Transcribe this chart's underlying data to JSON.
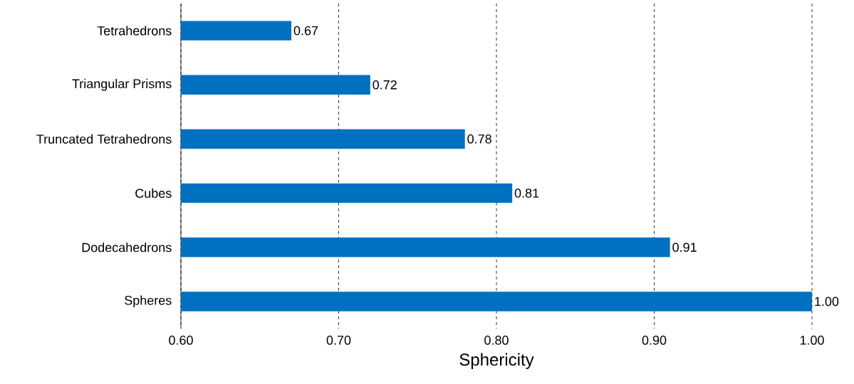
{
  "chart_data": {
    "type": "bar",
    "orientation": "horizontal",
    "xlabel": "Sphericity",
    "categories": [
      "Tetrahedrons",
      "Triangular Prisms",
      "Truncated Tetrahedrons",
      "Cubes",
      "Dodecahedrons",
      "Spheres"
    ],
    "values": [
      0.67,
      0.72,
      0.78,
      0.81,
      0.91,
      1.0
    ],
    "value_labels": [
      "0.67",
      "0.72",
      "0.78",
      "0.81",
      "0.91",
      "1.00"
    ],
    "color": "#0070c0",
    "xlim": [
      0.6,
      1.0
    ],
    "xticks": [
      {
        "value": 0.6,
        "label": "0.60"
      },
      {
        "value": 0.7,
        "label": "0.70"
      },
      {
        "value": 0.8,
        "label": "0.80"
      },
      {
        "value": 0.9,
        "label": "0.90"
      },
      {
        "value": 1.0,
        "label": "1.00"
      }
    ],
    "grid": "x"
  }
}
